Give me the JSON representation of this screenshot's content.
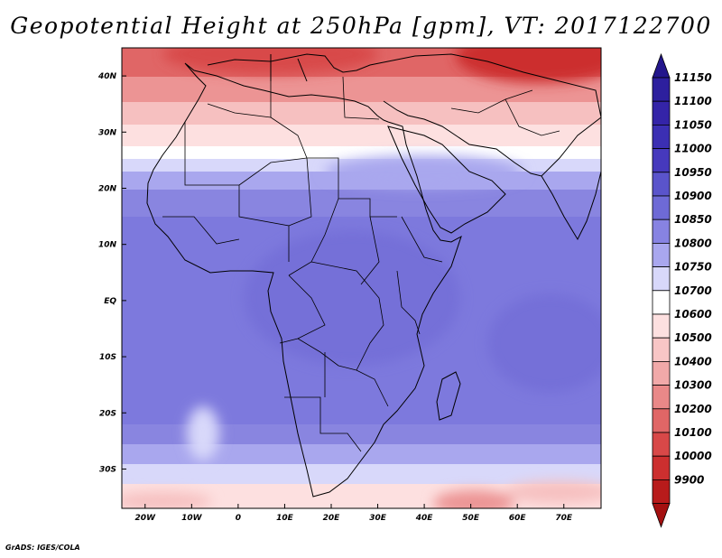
{
  "title": "Geopotential Height at 250hPa [gpm], VT: 2017122700",
  "credit": "GrADS: IGES/COLA",
  "map": {
    "variable": "Geopotential Height at 250hPa",
    "units": "gpm",
    "valid_time": "2017122700",
    "lon_range": [
      -25,
      78
    ],
    "lat_range": [
      -37,
      45
    ],
    "lat_ticks": [
      {
        "value": 40,
        "label": "40N"
      },
      {
        "value": 30,
        "label": "30N"
      },
      {
        "value": 20,
        "label": "20N"
      },
      {
        "value": 10,
        "label": "10N"
      },
      {
        "value": 0,
        "label": "EQ"
      },
      {
        "value": -10,
        "label": "10S"
      },
      {
        "value": -20,
        "label": "20S"
      },
      {
        "value": -30,
        "label": "30S"
      }
    ],
    "lon_ticks": [
      {
        "value": -20,
        "label": "20W"
      },
      {
        "value": -10,
        "label": "10W"
      },
      {
        "value": 0,
        "label": "0"
      },
      {
        "value": 10,
        "label": "10E"
      },
      {
        "value": 20,
        "label": "20E"
      },
      {
        "value": 30,
        "label": "30E"
      },
      {
        "value": 40,
        "label": "40E"
      },
      {
        "value": 50,
        "label": "50E"
      },
      {
        "value": 60,
        "label": "60E"
      },
      {
        "value": 70,
        "label": "70E"
      }
    ]
  },
  "colorbar": {
    "levels": [
      {
        "label": "11150",
        "color": "#2d1f9e"
      },
      {
        "label": "11100",
        "color": "#3424a8"
      },
      {
        "label": "11050",
        "color": "#3b2fb3"
      },
      {
        "label": "11000",
        "color": "#4639bd"
      },
      {
        "label": "10950",
        "color": "#5a54cb"
      },
      {
        "label": "10900",
        "color": "#6e6ad6"
      },
      {
        "label": "10850",
        "color": "#8783e2"
      },
      {
        "label": "10800",
        "color": "#a9a7ee"
      },
      {
        "label": "10750",
        "color": "#d8d8fa"
      },
      {
        "label": "10700",
        "color": "#ffffff"
      },
      {
        "label": "10600",
        "color": "#fde0e0"
      },
      {
        "label": "10500",
        "color": "#f8c6c6"
      },
      {
        "label": "10400",
        "color": "#f1a9a9"
      },
      {
        "label": "10300",
        "color": "#e98888"
      },
      {
        "label": "10200",
        "color": "#e06666"
      },
      {
        "label": "10100",
        "color": "#d84848"
      },
      {
        "label": "10000",
        "color": "#cc2f2f"
      },
      {
        "label": "9900",
        "color": "#b81b1b"
      }
    ],
    "top_arrow_color": "#23168c",
    "bottom_arrow_color": "#a41010"
  }
}
